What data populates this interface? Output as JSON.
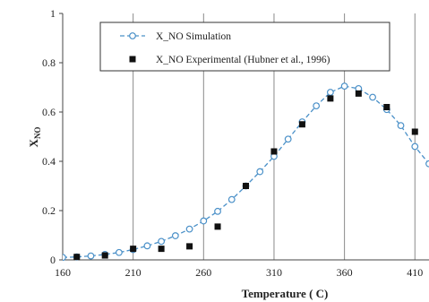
{
  "chart_data": {
    "type": "scatter",
    "xlabel": "Temperature ( C)",
    "ylabel": "XNO",
    "ylabel_main": "X",
    "ylabel_sub": "NO",
    "xlim": [
      160,
      420
    ],
    "ylim": [
      0,
      1
    ],
    "xticks": [
      160,
      210,
      260,
      310,
      360,
      410
    ],
    "yticks": [
      0,
      0.2,
      0.4,
      0.6,
      0.8,
      1
    ],
    "xtick_labels": [
      "160",
      "210",
      "260",
      "310",
      "360",
      "410"
    ],
    "ytick_labels": [
      "0",
      "0.2",
      "0.4",
      "0.6",
      "0.8",
      "1"
    ],
    "grid": "vertical",
    "legend_position": "top-left",
    "series": [
      {
        "name": "X_NO Simulation",
        "style": "dashed-line-open-circle",
        "color": "#4a90c8",
        "x": [
          160,
          170,
          180,
          190,
          200,
          210,
          220,
          230,
          240,
          250,
          260,
          270,
          280,
          290,
          300,
          310,
          320,
          330,
          340,
          350,
          360,
          370,
          380,
          390,
          400,
          410,
          420
        ],
        "y": [
          0.01,
          0.012,
          0.016,
          0.022,
          0.03,
          0.042,
          0.057,
          0.075,
          0.098,
          0.125,
          0.158,
          0.197,
          0.245,
          0.3,
          0.358,
          0.42,
          0.49,
          0.56,
          0.625,
          0.68,
          0.705,
          0.695,
          0.66,
          0.61,
          0.545,
          0.46,
          0.39
        ]
      },
      {
        "name": "X_NO Experimental (Hubner et al., 1996)",
        "style": "filled-square",
        "color": "#111111",
        "x": [
          170,
          190,
          210,
          230,
          250,
          270,
          290,
          310,
          330,
          350,
          370,
          390,
          410
        ],
        "y": [
          0.012,
          0.018,
          0.045,
          0.045,
          0.055,
          0.135,
          0.3,
          0.44,
          0.55,
          0.655,
          0.675,
          0.62,
          0.52
        ]
      }
    ]
  }
}
